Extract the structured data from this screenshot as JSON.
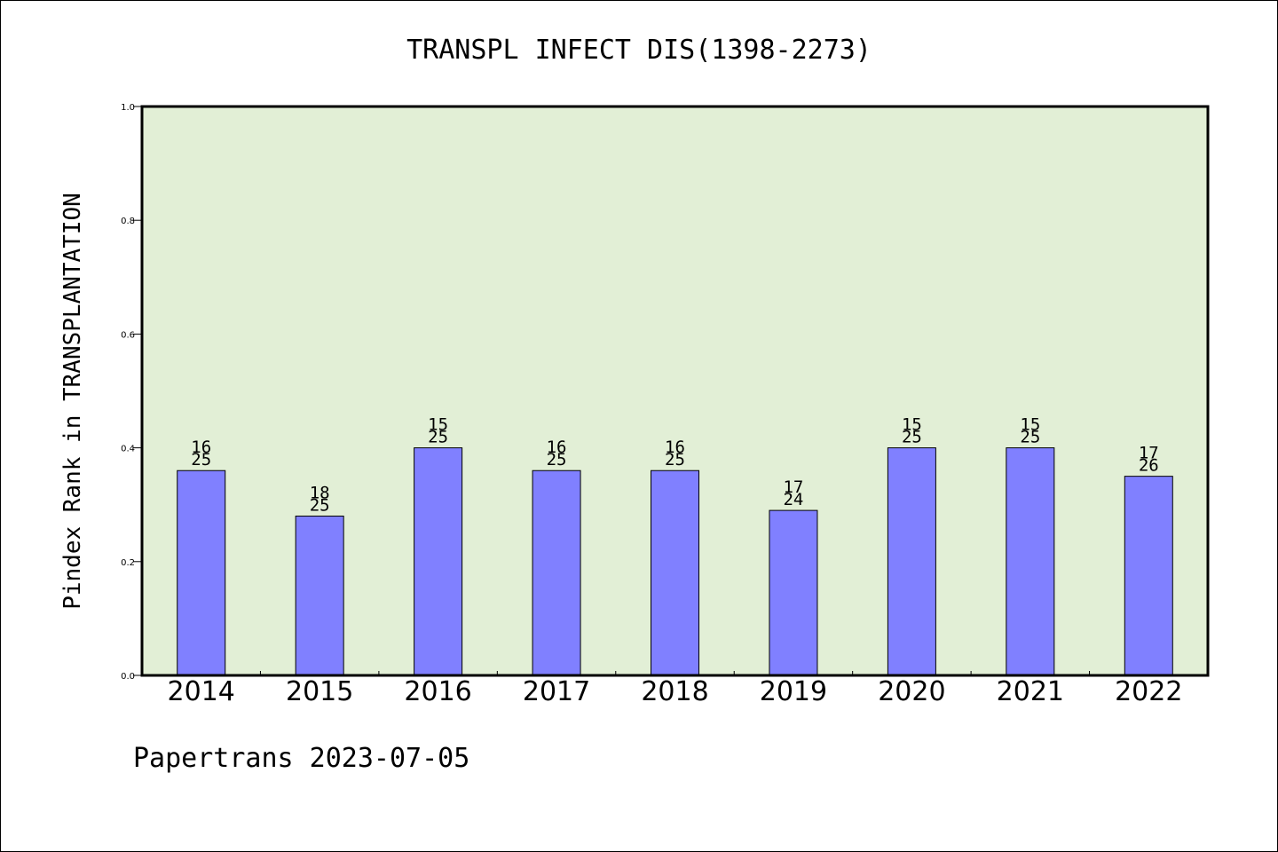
{
  "chart_data": {
    "type": "bar",
    "title": "TRANSPL INFECT DIS(1398-2273)",
    "ylabel": "Pindex Rank in TRANSPLANTATION",
    "xlabel": "",
    "footer": "Papertrans 2023-07-05",
    "ylim": [
      0,
      1.0
    ],
    "yticks": [
      "0.0",
      "0.2",
      "0.4",
      "0.6",
      "0.8",
      "1.0"
    ],
    "categories": [
      "2014",
      "2015",
      "2016",
      "2017",
      "2018",
      "2019",
      "2020",
      "2021",
      "2022"
    ],
    "values": [
      0.36,
      0.28,
      0.4,
      0.36,
      0.36,
      0.29,
      0.4,
      0.4,
      0.35
    ],
    "rank_labels": [
      "16",
      "18",
      "15",
      "16",
      "16",
      "17",
      "15",
      "15",
      "17"
    ],
    "total_labels": [
      "25",
      "25",
      "25",
      "25",
      "25",
      "24",
      "25",
      "25",
      "26"
    ],
    "grid": false,
    "colors": {
      "plot_background": "#e2efd6",
      "bar_fill": "#8080ff",
      "bar_stroke": "#000000"
    }
  }
}
